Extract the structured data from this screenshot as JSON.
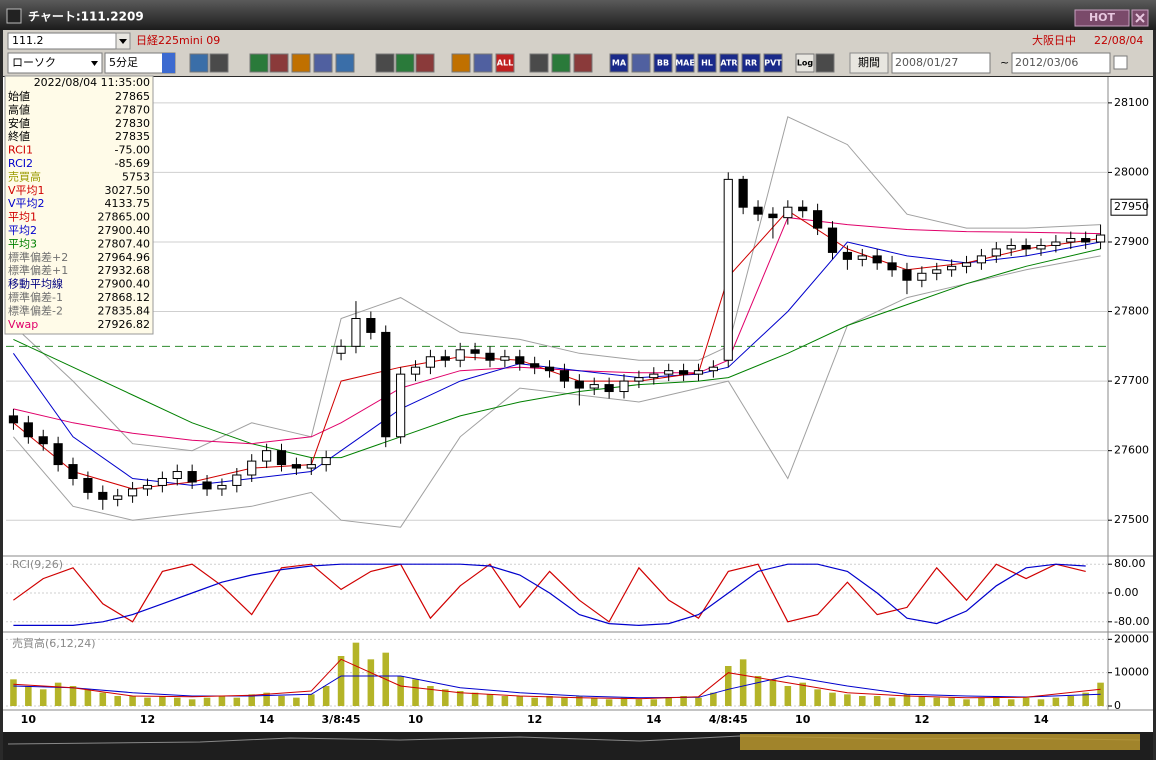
{
  "window": {
    "title": "チャート:111.2209",
    "hot_button": "HOT"
  },
  "toolbar": {
    "code": "111.2",
    "instrument": "日経225mini 09",
    "market": "大阪日中",
    "date": "22/08/04",
    "chart_style": "ローソク",
    "interval": "5分足",
    "buttons": [
      "ALL",
      "MA",
      "BB",
      "MAE",
      "HL",
      "ATR",
      "RR",
      "PVT",
      "Log"
    ],
    "period_button": "期間",
    "date_from": "2008/01/27",
    "range_sep": "~",
    "date_to": "2012/03/06"
  },
  "info_panel": {
    "datetime": "2022/08/04 11:35:00",
    "rows": [
      {
        "label": "始値",
        "value": "27865",
        "color": "#000000"
      },
      {
        "label": "高値",
        "value": "27870",
        "color": "#000000"
      },
      {
        "label": "安値",
        "value": "27830",
        "color": "#000000"
      },
      {
        "label": "終値",
        "value": "27835",
        "color": "#000000"
      },
      {
        "label": "RCI1",
        "value": "-75.00",
        "color": "#d00000"
      },
      {
        "label": "RCI2",
        "value": "-85.69",
        "color": "#0000cc"
      },
      {
        "label": "売買高",
        "value": "5753",
        "color": "#9a9a00"
      },
      {
        "label": "V平均1",
        "value": "3027.50",
        "color": "#d00000"
      },
      {
        "label": "V平均2",
        "value": "4133.75",
        "color": "#0000cc"
      },
      {
        "label": "平均1",
        "value": "27865.00",
        "color": "#d00000"
      },
      {
        "label": "平均2",
        "value": "27900.40",
        "color": "#0000cc"
      },
      {
        "label": "平均3",
        "value": "27807.40",
        "color": "#008000"
      },
      {
        "label": "標準偏差+2",
        "value": "27964.96",
        "color": "#707070"
      },
      {
        "label": "標準偏差+1",
        "value": "27932.68",
        "color": "#707070"
      },
      {
        "label": "移動平均線",
        "value": "27900.40",
        "color": "#000080"
      },
      {
        "label": "標準偏差-1",
        "value": "27868.12",
        "color": "#707070"
      },
      {
        "label": "標準偏差-2",
        "value": "27835.84",
        "color": "#707070"
      },
      {
        "label": "Vwap",
        "value": "27926.82",
        "color": "#e0006a"
      }
    ]
  },
  "chart_data": [
    {
      "type": "candlestick",
      "categories": [
        null,
        "10",
        null,
        null,
        null,
        null,
        null,
        null,
        null,
        "12",
        null,
        null,
        null,
        null,
        null,
        null,
        null,
        "14",
        null,
        null,
        null,
        null,
        "3/8:45",
        null,
        null,
        null,
        null,
        "10",
        null,
        null,
        null,
        null,
        null,
        null,
        null,
        "12",
        null,
        null,
        null,
        null,
        null,
        null,
        null,
        "14",
        null,
        null,
        null,
        null,
        "4/8:45",
        null,
        null,
        null,
        null,
        "10",
        null,
        null,
        null,
        null,
        null,
        null,
        null,
        "12",
        null,
        null,
        null,
        null,
        null,
        null,
        null,
        "14",
        null,
        null,
        null,
        null
      ],
      "open": [
        27650,
        27640,
        27620,
        27610,
        27580,
        27560,
        27540,
        27530,
        27535,
        27545,
        27550,
        27560,
        27570,
        27555,
        27545,
        27550,
        27565,
        27585,
        27600,
        27580,
        27575,
        27580,
        27740,
        27750,
        27790,
        27770,
        27620,
        27710,
        27720,
        27735,
        27730,
        27745,
        27740,
        27730,
        27735,
        27725,
        27720,
        27715,
        27700,
        27690,
        27695,
        27685,
        27700,
        27705,
        27710,
        27715,
        27710,
        27715,
        27730,
        27990,
        27950,
        27940,
        27935,
        27950,
        27945,
        27920,
        27885,
        27875,
        27880,
        27870,
        27860,
        27845,
        27855,
        27860,
        27865,
        27870,
        27880,
        27890,
        27895,
        27890,
        27895,
        27900,
        27905,
        27900
      ],
      "high": [
        27660,
        27650,
        27630,
        27620,
        27590,
        27570,
        27550,
        27545,
        27555,
        27560,
        27570,
        27580,
        27580,
        27565,
        27560,
        27575,
        27595,
        27610,
        27610,
        27590,
        27590,
        27600,
        27760,
        27815,
        27800,
        27780,
        27720,
        27730,
        27745,
        27745,
        27755,
        27755,
        27750,
        27745,
        27745,
        27735,
        27730,
        27725,
        27710,
        27705,
        27705,
        27710,
        27715,
        27720,
        27725,
        27725,
        27725,
        27730,
        28000,
        27995,
        27960,
        27950,
        27960,
        27960,
        27955,
        27930,
        27895,
        27890,
        27890,
        27880,
        27870,
        27865,
        27870,
        27875,
        27880,
        27890,
        27900,
        27905,
        27905,
        27905,
        27910,
        27915,
        27915,
        27925
      ],
      "low": [
        27630,
        27610,
        27600,
        27570,
        27550,
        27530,
        27515,
        27520,
        27525,
        27535,
        27540,
        27550,
        27545,
        27535,
        27535,
        27540,
        27555,
        27575,
        27570,
        27565,
        27565,
        27570,
        27730,
        27740,
        27760,
        27605,
        27610,
        27700,
        27710,
        27720,
        27720,
        27730,
        27720,
        27720,
        27715,
        27710,
        27705,
        27690,
        27665,
        27680,
        27675,
        27675,
        27690,
        27695,
        27700,
        27700,
        27700,
        27705,
        27720,
        27940,
        27930,
        27905,
        27925,
        27935,
        27910,
        27875,
        27860,
        27865,
        27860,
        27850,
        27825,
        27835,
        27845,
        27850,
        27855,
        27860,
        27870,
        27880,
        27880,
        27880,
        27885,
        27890,
        27890,
        27890
      ],
      "close": [
        27640,
        27620,
        27610,
        27580,
        27560,
        27540,
        27530,
        27535,
        27545,
        27550,
        27560,
        27570,
        27555,
        27545,
        27550,
        27565,
        27585,
        27600,
        27580,
        27575,
        27580,
        27590,
        27750,
        27790,
        27770,
        27620,
        27710,
        27720,
        27735,
        27730,
        27745,
        27740,
        27730,
        27735,
        27725,
        27720,
        27715,
        27700,
        27690,
        27695,
        27685,
        27700,
        27705,
        27710,
        27715,
        27710,
        27715,
        27720,
        27990,
        27950,
        27940,
        27935,
        27950,
        27945,
        27920,
        27885,
        27875,
        27880,
        27870,
        27860,
        27845,
        27855,
        27860,
        27865,
        27870,
        27880,
        27890,
        27895,
        27890,
        27895,
        27900,
        27905,
        27900,
        27910
      ],
      "up_color": "#ffffff",
      "down_color": "#000000",
      "overlays": [
        {
          "color": "#a0a0a0",
          "x": [
            0,
            4,
            8,
            12,
            16,
            20,
            22,
            26,
            30,
            34,
            38,
            42,
            46,
            48,
            52,
            56,
            60,
            64,
            68,
            73
          ],
          "values": [
            27780,
            27700,
            27610,
            27600,
            27640,
            27620,
            27790,
            27820,
            27770,
            27760,
            27740,
            27730,
            27730,
            27750,
            28080,
            28040,
            27940,
            27920,
            27920,
            27925
          ]
        },
        {
          "color": "#a0a0a0",
          "x": [
            0,
            4,
            8,
            12,
            16,
            20,
            22,
            26,
            30,
            34,
            38,
            42,
            46,
            48,
            52,
            56,
            60,
            64,
            68,
            73
          ],
          "values": [
            27620,
            27520,
            27500,
            27510,
            27520,
            27540,
            27500,
            27490,
            27620,
            27690,
            27680,
            27670,
            27690,
            27700,
            27560,
            27780,
            27820,
            27840,
            27860,
            27880
          ]
        },
        {
          "color": "#008000",
          "x": [
            0,
            4,
            8,
            12,
            16,
            20,
            22,
            26,
            30,
            34,
            38,
            42,
            46,
            48,
            52,
            56,
            60,
            64,
            68,
            73
          ],
          "values": [
            27760,
            27720,
            27680,
            27640,
            27610,
            27590,
            27590,
            27620,
            27650,
            27670,
            27685,
            27695,
            27700,
            27705,
            27740,
            27780,
            27810,
            27840,
            27865,
            27890
          ]
        },
        {
          "color": "#e0006a",
          "x": [
            0,
            4,
            8,
            12,
            16,
            20,
            22,
            26,
            30,
            34,
            38,
            42,
            46,
            48,
            52,
            56,
            60,
            64,
            68,
            73
          ],
          "values": [
            27660,
            27640,
            27625,
            27615,
            27610,
            27620,
            27640,
            27690,
            27715,
            27720,
            27715,
            27712,
            27712,
            27730,
            27935,
            27925,
            27918,
            27915,
            27914,
            27912
          ]
        },
        {
          "color": "#0000cc",
          "x": [
            0,
            4,
            8,
            12,
            16,
            20,
            22,
            26,
            30,
            34,
            38,
            42,
            46,
            48,
            52,
            56,
            60,
            64,
            68,
            73
          ],
          "values": [
            27740,
            27620,
            27560,
            27550,
            27560,
            27570,
            27600,
            27660,
            27700,
            27725,
            27715,
            27705,
            27710,
            27720,
            27800,
            27900,
            27880,
            27870,
            27880,
            27900
          ]
        },
        {
          "color": "#d00000",
          "x": [
            0,
            4,
            8,
            12,
            16,
            20,
            22,
            26,
            30,
            34,
            38,
            42,
            46,
            48,
            52,
            56,
            60,
            64,
            68,
            73
          ],
          "values": [
            27640,
            27570,
            27545,
            27555,
            27575,
            27580,
            27700,
            27720,
            27735,
            27730,
            27700,
            27700,
            27712,
            27850,
            27945,
            27890,
            27860,
            27870,
            27890,
            27905
          ]
        }
      ],
      "hline": 27750,
      "hline_color": "#2e8b2e",
      "last_price": 27950,
      "ylim": [
        27450,
        28130
      ],
      "yticks": [
        27500,
        27600,
        27700,
        27800,
        27900,
        28000,
        28100
      ],
      "grid": true
    },
    {
      "type": "line",
      "title": "RCI(9,26)",
      "x": [
        0,
        2,
        4,
        6,
        8,
        10,
        12,
        14,
        16,
        18,
        20,
        22,
        24,
        26,
        28,
        30,
        32,
        34,
        36,
        38,
        40,
        42,
        44,
        46,
        48,
        50,
        52,
        54,
        56,
        58,
        60,
        62,
        64,
        66,
        68,
        70,
        72
      ],
      "series": [
        {
          "color": "#d00000",
          "values": [
            -20,
            40,
            70,
            -30,
            -80,
            60,
            80,
            20,
            -60,
            70,
            80,
            10,
            60,
            80,
            -70,
            20,
            80,
            -40,
            60,
            -20,
            -80,
            70,
            -20,
            -70,
            60,
            80,
            -80,
            -60,
            30,
            -60,
            -40,
            70,
            -20,
            80,
            40,
            80,
            60
          ]
        },
        {
          "color": "#0000cc",
          "values": [
            -90,
            -90,
            -90,
            -80,
            -60,
            -30,
            0,
            30,
            50,
            65,
            75,
            80,
            80,
            80,
            80,
            80,
            75,
            50,
            0,
            -60,
            -85,
            -90,
            -85,
            -60,
            0,
            60,
            80,
            80,
            60,
            0,
            -70,
            -85,
            -50,
            20,
            70,
            80,
            75
          ]
        }
      ],
      "ylim": [
        -100,
        100
      ],
      "yticks": [
        {
          "value": 80,
          "label": "80.00"
        },
        {
          "value": 0,
          "label": "0.00"
        },
        {
          "value": -80,
          "label": "-80.00"
        }
      ],
      "grid": true
    },
    {
      "type": "bar",
      "title": "売買高(6,12,24)",
      "color": "#b4b428",
      "values": [
        8000,
        6000,
        5000,
        7000,
        6000,
        5000,
        4000,
        3000,
        3000,
        2500,
        3000,
        2500,
        2000,
        2500,
        3000,
        2500,
        3500,
        4000,
        3000,
        2500,
        3500,
        6000,
        15000,
        19000,
        14000,
        16000,
        9000,
        8000,
        6000,
        5000,
        4500,
        4000,
        3500,
        3000,
        3000,
        2500,
        3000,
        2500,
        3000,
        2500,
        2000,
        2500,
        2000,
        2000,
        2500,
        3000,
        2500,
        4000,
        12000,
        14000,
        9000,
        8000,
        6000,
        7000,
        5000,
        4000,
        3500,
        3000,
        3000,
        2500,
        3500,
        3000,
        2500,
        2500,
        2000,
        2500,
        3000,
        2000,
        2500,
        2000,
        2500,
        3000,
        4000,
        7000
      ],
      "overlays": [
        {
          "color": "#0000cc",
          "x": [
            0,
            4,
            8,
            12,
            16,
            20,
            22,
            26,
            30,
            34,
            38,
            42,
            46,
            48,
            52,
            56,
            60,
            64,
            68,
            73
          ],
          "values": [
            6000,
            5500,
            4000,
            3000,
            3000,
            3500,
            9000,
            9000,
            5500,
            4000,
            3000,
            2500,
            2600,
            5000,
            9000,
            6000,
            3500,
            3000,
            2700,
            3500
          ]
        },
        {
          "color": "#d00000",
          "x": [
            0,
            4,
            8,
            12,
            16,
            20,
            22,
            26,
            30,
            34,
            38,
            42,
            46,
            48,
            52,
            56,
            60,
            64,
            68,
            73
          ],
          "values": [
            6500,
            5500,
            3000,
            2800,
            3200,
            4500,
            14000,
            6000,
            4000,
            3000,
            2500,
            2200,
            2800,
            10000,
            7000,
            4000,
            3000,
            2500,
            2600,
            5000
          ]
        }
      ],
      "ylim": [
        0,
        21000
      ],
      "yticks": [
        0,
        10000,
        20000
      ],
      "grid": true
    }
  ]
}
